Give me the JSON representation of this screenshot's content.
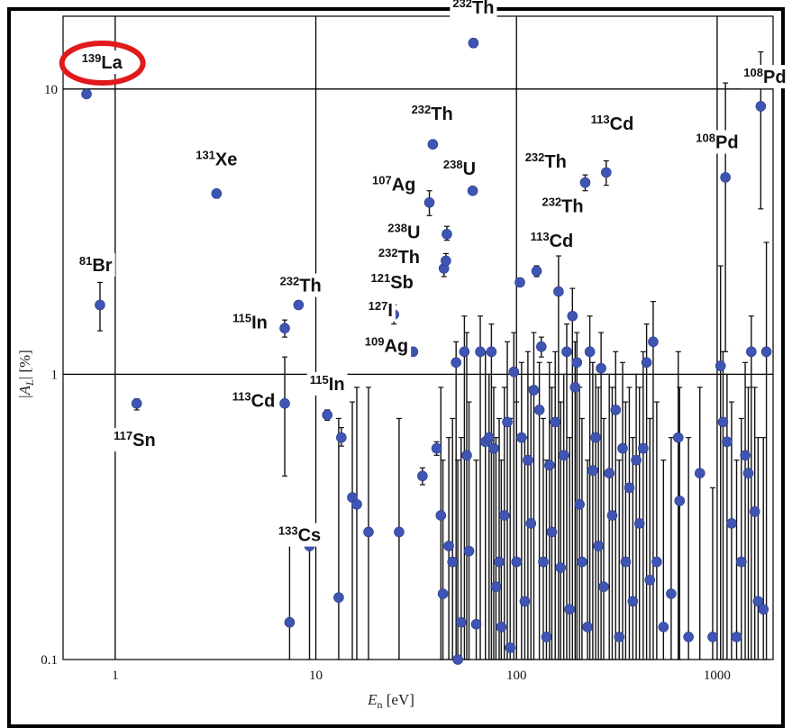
{
  "chart_data": {
    "type": "scatter",
    "xscale": "log",
    "yscale": "log",
    "xlim": [
      0.55,
      1900
    ],
    "ylim": [
      0.1,
      18
    ],
    "xlabel": {
      "main": "E",
      "sub": "n",
      "unit": " [eV]"
    },
    "ylabel": {
      "pre": "|",
      "main": "A",
      "sub": "L",
      "post": "| [%]"
    },
    "xticks": [
      {
        "v": 1,
        "label": "1"
      },
      {
        "v": 10,
        "label": "10"
      },
      {
        "v": 100,
        "label": "100"
      },
      {
        "v": 1000,
        "label": "1000"
      }
    ],
    "yticks": [
      {
        "v": 0.1,
        "label": "0.1"
      },
      {
        "v": 1,
        "label": "1"
      },
      {
        "v": 10,
        "label": "10"
      }
    ],
    "grid": true,
    "marker_color": "#3f55b3",
    "highlight_color": "#e0191b",
    "points": [
      {
        "x": 0.72,
        "y": 9.6
      },
      {
        "x": 0.84,
        "y": 1.75,
        "lo": 1.42,
        "hi": 2.1
      },
      {
        "x": 1.28,
        "y": 0.79,
        "lo": 0.75,
        "hi": 0.82
      },
      {
        "x": 3.2,
        "y": 4.3,
        "lo": 4.15,
        "hi": 4.45
      },
      {
        "x": 7.0,
        "y": 1.45,
        "lo": 1.35,
        "hi": 1.55
      },
      {
        "x": 7.0,
        "y": 0.79,
        "lo": 0.44,
        "hi": 1.15
      },
      {
        "x": 7.4,
        "y": 0.135,
        "lo": 0.1,
        "hi": 0.27
      },
      {
        "x": 8.2,
        "y": 1.75,
        "lo": 1.7,
        "hi": 1.8
      },
      {
        "x": 9.3,
        "y": 0.25,
        "lo": 0.1,
        "hi": 0.26
      },
      {
        "x": 11.4,
        "y": 0.72,
        "lo": 0.69,
        "hi": 0.75
      },
      {
        "x": 13,
        "y": 0.165,
        "lo": 0.1,
        "hi": 0.7
      },
      {
        "x": 13.4,
        "y": 0.6,
        "lo": 0.56,
        "hi": 0.65
      },
      {
        "x": 15.2,
        "y": 0.37,
        "lo": 0.1,
        "hi": 0.8
      },
      {
        "x": 16,
        "y": 0.35,
        "lo": 0.1,
        "hi": 0.9
      },
      {
        "x": 18.3,
        "y": 0.28,
        "lo": 0.1,
        "hi": 0.9
      },
      {
        "x": 24.5,
        "y": 1.62,
        "lo": 1.5,
        "hi": 1.75
      },
      {
        "x": 26,
        "y": 0.28,
        "lo": 0.1,
        "hi": 0.7
      },
      {
        "x": 30.5,
        "y": 1.2
      },
      {
        "x": 34,
        "y": 0.44,
        "lo": 0.41,
        "hi": 0.47
      },
      {
        "x": 36.8,
        "y": 4.0,
        "lo": 3.6,
        "hi": 4.4
      },
      {
        "x": 38.3,
        "y": 6.4,
        "lo": 6.2,
        "hi": 6.6
      },
      {
        "x": 40,
        "y": 0.55,
        "lo": 0.52,
        "hi": 0.58
      },
      {
        "x": 42,
        "y": 0.32,
        "lo": 0.1,
        "hi": 0.9
      },
      {
        "x": 43,
        "y": 0.17,
        "lo": 0.1,
        "hi": 0.5
      },
      {
        "x": 43.5,
        "y": 2.35,
        "lo": 2.2,
        "hi": 2.55
      },
      {
        "x": 44.5,
        "y": 2.5,
        "lo": 2.35,
        "hi": 2.65
      },
      {
        "x": 45,
        "y": 3.1,
        "lo": 2.95,
        "hi": 3.3
      },
      {
        "x": 46,
        "y": 0.25,
        "lo": 0.1,
        "hi": 0.6
      },
      {
        "x": 48,
        "y": 0.22,
        "lo": 0.1,
        "hi": 0.7
      },
      {
        "x": 50,
        "y": 1.1,
        "lo": 0.1,
        "hi": 1.3
      },
      {
        "x": 51,
        "y": 0.1,
        "lo": 0.1,
        "hi": 0.5
      },
      {
        "x": 53,
        "y": 0.135,
        "lo": 0.1,
        "hi": 0.6
      },
      {
        "x": 55,
        "y": 1.2,
        "lo": 0.1,
        "hi": 1.6
      },
      {
        "x": 56.5,
        "y": 0.52,
        "lo": 0.1,
        "hi": 1.4
      },
      {
        "x": 58,
        "y": 0.24,
        "lo": 0.1,
        "hi": 0.8
      },
      {
        "x": 61,
        "y": 14.5,
        "lo": 14.0,
        "hi": 15.0
      },
      {
        "x": 60.5,
        "y": 4.4,
        "lo": 4.3,
        "hi": 4.5
      },
      {
        "x": 63,
        "y": 0.133,
        "lo": 0.1,
        "hi": 0.5
      },
      {
        "x": 66,
        "y": 1.2,
        "lo": 0.1,
        "hi": 1.6
      },
      {
        "x": 70,
        "y": 0.58,
        "lo": 0.1,
        "hi": 1.2
      },
      {
        "x": 73,
        "y": 0.6,
        "lo": 0.1,
        "hi": 1.0
      },
      {
        "x": 75,
        "y": 1.2,
        "lo": 0.1,
        "hi": 1.5
      },
      {
        "x": 77,
        "y": 0.55,
        "lo": 0.1,
        "hi": 0.9
      },
      {
        "x": 79,
        "y": 0.18,
        "lo": 0.1,
        "hi": 0.6
      },
      {
        "x": 82,
        "y": 0.22,
        "lo": 0.1,
        "hi": 0.7
      },
      {
        "x": 84,
        "y": 0.13,
        "lo": 0.1,
        "hi": 0.5
      },
      {
        "x": 87,
        "y": 0.32,
        "lo": 0.1,
        "hi": 0.9
      },
      {
        "x": 90,
        "y": 0.68,
        "lo": 0.1,
        "hi": 1.3
      },
      {
        "x": 93,
        "y": 0.11,
        "lo": 0.1,
        "hi": 0.7
      },
      {
        "x": 97,
        "y": 1.02,
        "lo": 0.1,
        "hi": 1.4
      },
      {
        "x": 100,
        "y": 0.22,
        "lo": 0.1,
        "hi": 0.8
      },
      {
        "x": 104,
        "y": 2.1,
        "lo": 2.05,
        "hi": 2.15
      },
      {
        "x": 106,
        "y": 0.6,
        "lo": 0.1,
        "hi": 1.1
      },
      {
        "x": 110,
        "y": 0.16,
        "lo": 0.1,
        "hi": 0.6
      },
      {
        "x": 114,
        "y": 0.5,
        "lo": 0.1,
        "hi": 1.2
      },
      {
        "x": 118,
        "y": 0.3,
        "lo": 0.1,
        "hi": 0.9
      },
      {
        "x": 122,
        "y": 0.88,
        "lo": 0.1,
        "hi": 1.4
      },
      {
        "x": 126,
        "y": 2.3,
        "lo": 2.2,
        "hi": 2.4
      },
      {
        "x": 130,
        "y": 0.75,
        "lo": 0.1,
        "hi": 1.1
      },
      {
        "x": 133,
        "y": 1.25,
        "lo": 1.15,
        "hi": 1.35
      },
      {
        "x": 136,
        "y": 0.22,
        "lo": 0.1,
        "hi": 0.7
      },
      {
        "x": 141,
        "y": 0.12,
        "lo": 0.1,
        "hi": 0.5
      },
      {
        "x": 146,
        "y": 0.48,
        "lo": 0.1,
        "hi": 1.1
      },
      {
        "x": 150,
        "y": 0.28,
        "lo": 0.1,
        "hi": 0.9
      },
      {
        "x": 156,
        "y": 0.68,
        "lo": 0.1,
        "hi": 1.2
      },
      {
        "x": 162,
        "y": 1.95,
        "lo": 0.1,
        "hi": 2.6
      },
      {
        "x": 166,
        "y": 0.21,
        "lo": 0.1,
        "hi": 0.8
      },
      {
        "x": 172,
        "y": 0.52,
        "lo": 0.1,
        "hi": 1.0
      },
      {
        "x": 178,
        "y": 1.2,
        "lo": 0.1,
        "hi": 1.5
      },
      {
        "x": 184,
        "y": 0.15,
        "lo": 0.1,
        "hi": 0.6
      },
      {
        "x": 190,
        "y": 1.6,
        "lo": 0.1,
        "hi": 2.0
      },
      {
        "x": 196,
        "y": 0.9,
        "lo": 0.1,
        "hi": 1.3
      },
      {
        "x": 200,
        "y": 1.1,
        "lo": 0.1,
        "hi": 1.4
      },
      {
        "x": 206,
        "y": 0.35,
        "lo": 0.1,
        "hi": 0.9
      },
      {
        "x": 212,
        "y": 0.22,
        "lo": 0.1,
        "hi": 0.7
      },
      {
        "x": 220,
        "y": 4.7,
        "lo": 4.4,
        "hi": 5.0
      },
      {
        "x": 226,
        "y": 0.13,
        "lo": 0.1,
        "hi": 0.5
      },
      {
        "x": 232,
        "y": 1.2,
        "lo": 0.1,
        "hi": 1.6
      },
      {
        "x": 240,
        "y": 0.46,
        "lo": 0.1,
        "hi": 1.1
      },
      {
        "x": 248,
        "y": 0.6,
        "lo": 0.1,
        "hi": 1.0
      },
      {
        "x": 256,
        "y": 0.25,
        "lo": 0.1,
        "hi": 0.9
      },
      {
        "x": 264,
        "y": 1.05,
        "lo": 0.1,
        "hi": 1.4
      },
      {
        "x": 272,
        "y": 0.18,
        "lo": 0.1,
        "hi": 0.7
      },
      {
        "x": 280,
        "y": 5.1,
        "lo": 4.6,
        "hi": 5.6
      },
      {
        "x": 290,
        "y": 0.45,
        "lo": 0.1,
        "hi": 1.0
      },
      {
        "x": 300,
        "y": 0.32,
        "lo": 0.1,
        "hi": 0.9
      },
      {
        "x": 312,
        "y": 0.75,
        "lo": 0.1,
        "hi": 1.2
      },
      {
        "x": 325,
        "y": 0.12,
        "lo": 0.1,
        "hi": 0.5
      },
      {
        "x": 338,
        "y": 0.55,
        "lo": 0.1,
        "hi": 1.1
      },
      {
        "x": 350,
        "y": 0.22,
        "lo": 0.1,
        "hi": 0.8
      },
      {
        "x": 365,
        "y": 0.4,
        "lo": 0.1,
        "hi": 0.9
      },
      {
        "x": 380,
        "y": 0.16,
        "lo": 0.1,
        "hi": 0.6
      },
      {
        "x": 395,
        "y": 0.5,
        "lo": 0.1,
        "hi": 1.0
      },
      {
        "x": 410,
        "y": 0.3,
        "lo": 0.1,
        "hi": 0.9
      },
      {
        "x": 428,
        "y": 0.55,
        "lo": 0.1,
        "hi": 1.2
      },
      {
        "x": 445,
        "y": 1.1,
        "lo": 0.1,
        "hi": 1.5
      },
      {
        "x": 462,
        "y": 0.19,
        "lo": 0.1,
        "hi": 0.7
      },
      {
        "x": 480,
        "y": 1.3,
        "lo": 0.1,
        "hi": 1.8
      },
      {
        "x": 500,
        "y": 0.22,
        "lo": 0.1,
        "hi": 0.8
      },
      {
        "x": 540,
        "y": 0.13,
        "lo": 0.1,
        "hi": 0.5
      },
      {
        "x": 590,
        "y": 0.17,
        "lo": 0.1,
        "hi": 0.6
      },
      {
        "x": 640,
        "y": 0.6,
        "lo": 0.1,
        "hi": 1.2
      },
      {
        "x": 650,
        "y": 0.36,
        "lo": 0.1,
        "hi": 0.9
      },
      {
        "x": 720,
        "y": 0.12,
        "lo": 0.1,
        "hi": 0.6
      },
      {
        "x": 820,
        "y": 0.45,
        "lo": 0.1,
        "hi": 0.9
      },
      {
        "x": 950,
        "y": 0.12,
        "lo": 0.1,
        "hi": 0.4
      },
      {
        "x": 1040,
        "y": 1.07,
        "lo": 0.1,
        "hi": 2.4
      },
      {
        "x": 1070,
        "y": 0.68,
        "lo": 0.1,
        "hi": 1.2
      },
      {
        "x": 1100,
        "y": 4.9,
        "lo": 1.2,
        "hi": 10.5
      },
      {
        "x": 1120,
        "y": 0.58,
        "lo": 0.1,
        "hi": 1.0
      },
      {
        "x": 1180,
        "y": 0.3,
        "lo": 0.1,
        "hi": 0.8
      },
      {
        "x": 1250,
        "y": 0.12,
        "lo": 0.1,
        "hi": 0.5
      },
      {
        "x": 1320,
        "y": 0.22,
        "lo": 0.1,
        "hi": 0.7
      },
      {
        "x": 1380,
        "y": 0.52,
        "lo": 0.1,
        "hi": 1.1
      },
      {
        "x": 1430,
        "y": 0.45,
        "lo": 0.1,
        "hi": 0.9
      },
      {
        "x": 1480,
        "y": 1.2,
        "lo": 0.1,
        "hi": 1.6
      },
      {
        "x": 1540,
        "y": 0.33,
        "lo": 0.1,
        "hi": 0.9
      },
      {
        "x": 1600,
        "y": 0.16,
        "lo": 0.1,
        "hi": 0.6
      },
      {
        "x": 1650,
        "y": 8.7,
        "lo": 3.8,
        "hi": 13.5
      },
      {
        "x": 1700,
        "y": 0.15,
        "lo": 0.1,
        "hi": 0.6
      },
      {
        "x": 1760,
        "y": 1.2,
        "lo": 0.1,
        "hi": 2.9
      }
    ],
    "annotations": [
      {
        "mass": "139",
        "elem": "La",
        "x": 0.86,
        "y": 11.8,
        "highlight": true
      },
      {
        "mass": "81",
        "elem": "Br",
        "x": 0.8,
        "y": 2.3
      },
      {
        "mass": "117",
        "elem": "Sn",
        "x": 1.25,
        "y": 0.56
      },
      {
        "mass": "131",
        "elem": "Xe",
        "x": 3.2,
        "y": 5.4
      },
      {
        "mass": "115",
        "elem": "In",
        "x": 4.7,
        "y": 1.45
      },
      {
        "mass": "113",
        "elem": "Cd",
        "x": 4.9,
        "y": 0.77
      },
      {
        "mass": "232",
        "elem": "Th",
        "x": 8.4,
        "y": 1.95
      },
      {
        "mass": "115",
        "elem": "In",
        "x": 11.4,
        "y": 0.88
      },
      {
        "mass": "133",
        "elem": "Cs",
        "x": 8.3,
        "y": 0.26
      },
      {
        "mass": "127",
        "elem": "I",
        "x": 21,
        "y": 1.6
      },
      {
        "mass": "109",
        "elem": "Ag",
        "x": 22.5,
        "y": 1.2
      },
      {
        "mass": "121",
        "elem": "Sb",
        "x": 24,
        "y": 2.0
      },
      {
        "mass": "232",
        "elem": "Th",
        "x": 26,
        "y": 2.45
      },
      {
        "mass": "238",
        "elem": "U",
        "x": 27.5,
        "y": 3.0
      },
      {
        "mass": "107",
        "elem": "Ag",
        "x": 24.5,
        "y": 4.4
      },
      {
        "mass": "232",
        "elem": "Th",
        "x": 38,
        "y": 7.8
      },
      {
        "mass": "238",
        "elem": "U",
        "x": 52,
        "y": 5.0
      },
      {
        "mass": "232",
        "elem": "Th",
        "x": 61,
        "y": 18.4
      },
      {
        "mass": "232",
        "elem": "Th",
        "x": 140,
        "y": 5.3
      },
      {
        "mass": "232",
        "elem": "Th",
        "x": 170,
        "y": 3.7
      },
      {
        "mass": "113",
        "elem": "Cd",
        "x": 150,
        "y": 2.8
      },
      {
        "mass": "113",
        "elem": "Cd",
        "x": 300,
        "y": 7.2
      },
      {
        "mass": "108",
        "elem": "Pd",
        "x": 1000,
        "y": 6.2
      },
      {
        "mass": "108",
        "elem": "Pd",
        "x": 1730,
        "y": 10.5
      }
    ]
  }
}
